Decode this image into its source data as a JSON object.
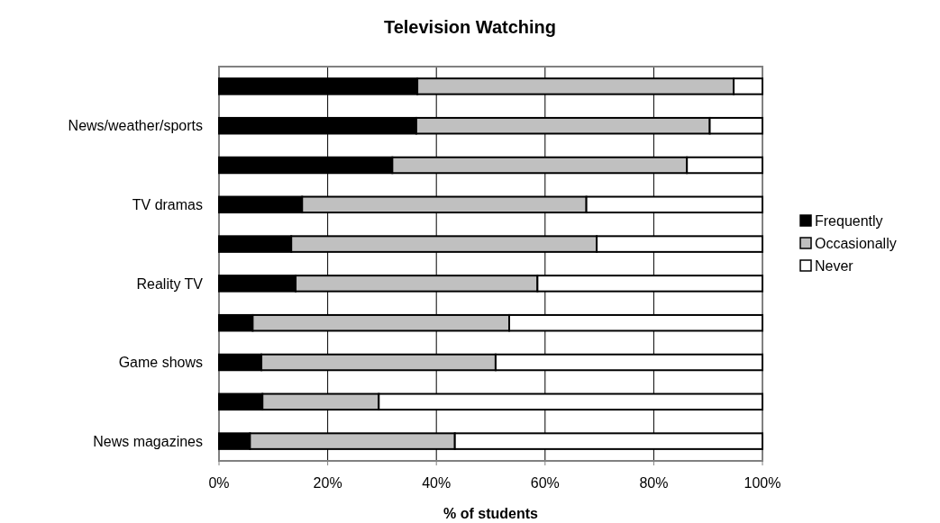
{
  "chart_data": {
    "type": "bar",
    "orientation": "horizontal",
    "stacked": true,
    "title": "Television Watching",
    "xlabel": "% of students",
    "categories": [
      null,
      "News/weather/sports",
      null,
      "TV dramas",
      null,
      "Reality TV",
      null,
      "Game shows",
      null,
      "News magazines"
    ],
    "series": [
      {
        "name": "Frequently",
        "color": "#000000",
        "values": [
          36.5,
          36.3,
          31.9,
          15.3,
          13.3,
          14.1,
          6.2,
          7.8,
          8.0,
          5.7
        ]
      },
      {
        "name": "Occasionally",
        "color": "#c0c0c0",
        "values": [
          58.2,
          54.0,
          54.2,
          52.3,
          56.2,
          44.5,
          47.2,
          43.1,
          21.4,
          37.7
        ]
      },
      {
        "name": "Never",
        "color": "#ffffff",
        "values": [
          5.3,
          9.7,
          13.9,
          32.4,
          30.5,
          41.4,
          46.6,
          49.1,
          70.6,
          56.6
        ]
      }
    ],
    "xlim": [
      0,
      100
    ],
    "xticks": [
      {
        "value": 0,
        "label": "0%"
      },
      {
        "value": 20,
        "label": "20%"
      },
      {
        "value": 40,
        "label": "40%"
      },
      {
        "value": 60,
        "label": "60%"
      },
      {
        "value": 80,
        "label": "80%"
      },
      {
        "value": 100,
        "label": "100%"
      }
    ],
    "grid": "x",
    "legend": "right"
  }
}
